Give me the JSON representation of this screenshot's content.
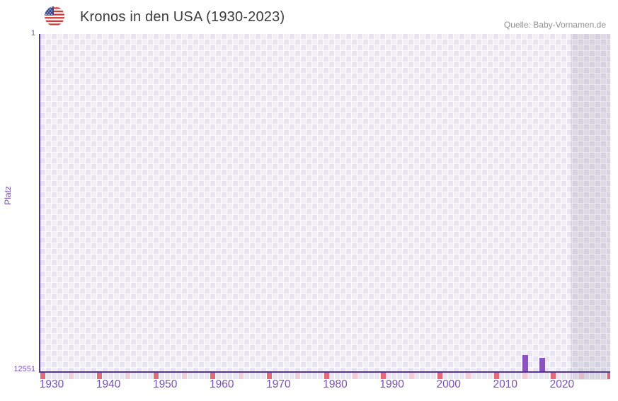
{
  "header": {
    "title": "Kronos in den USA (1930-2023)",
    "source": "Quelle: Baby-Vornamen.de",
    "flag_icon": "us-flag-icon"
  },
  "chart_data": {
    "type": "bar",
    "title": "Kronos in den USA (1930-2023)",
    "name": "Kronos",
    "region": "USA",
    "ylabel": "Platz",
    "y_axis": {
      "top_tick": "1",
      "bottom_tick": "12551",
      "best_rank": 1,
      "worst_rank": 12551,
      "inverted": true
    },
    "x_axis": {
      "data_start": 1930,
      "data_end": 2023,
      "view_start": 1930,
      "view_end": 2030.5,
      "tick_years": [
        1930,
        1940,
        1950,
        1960,
        1970,
        1980,
        1990,
        2000,
        2010,
        2020
      ]
    },
    "series": [
      {
        "name": "Platz",
        "points": [
          {
            "year": 2015,
            "rank": 11950
          },
          {
            "year": 2018,
            "rank": 12050
          }
        ]
      }
    ],
    "decade_marks": [
      1930,
      1940,
      1950,
      1960,
      1970,
      1980,
      1990,
      2000,
      2010,
      2020,
      2030
    ],
    "half_decade_marks": [
      1935,
      1945,
      1955,
      1965,
      1975,
      1985,
      1995,
      2005,
      2015,
      2025
    ],
    "no_data_shade_start": 2023.5,
    "grid": true,
    "legend": false,
    "colors": {
      "bar": "#8c54c3",
      "axis_line": "#55339c",
      "decade_mark": "#e1697b",
      "half_decade_mark": "#f2ccd7",
      "grid_cell_light": "#f2effa",
      "grid_cell_dark": "#e9e4f3",
      "tick_label": "#7a50b5",
      "title_text": "#3b3b3b",
      "source_text": "#909090"
    }
  }
}
